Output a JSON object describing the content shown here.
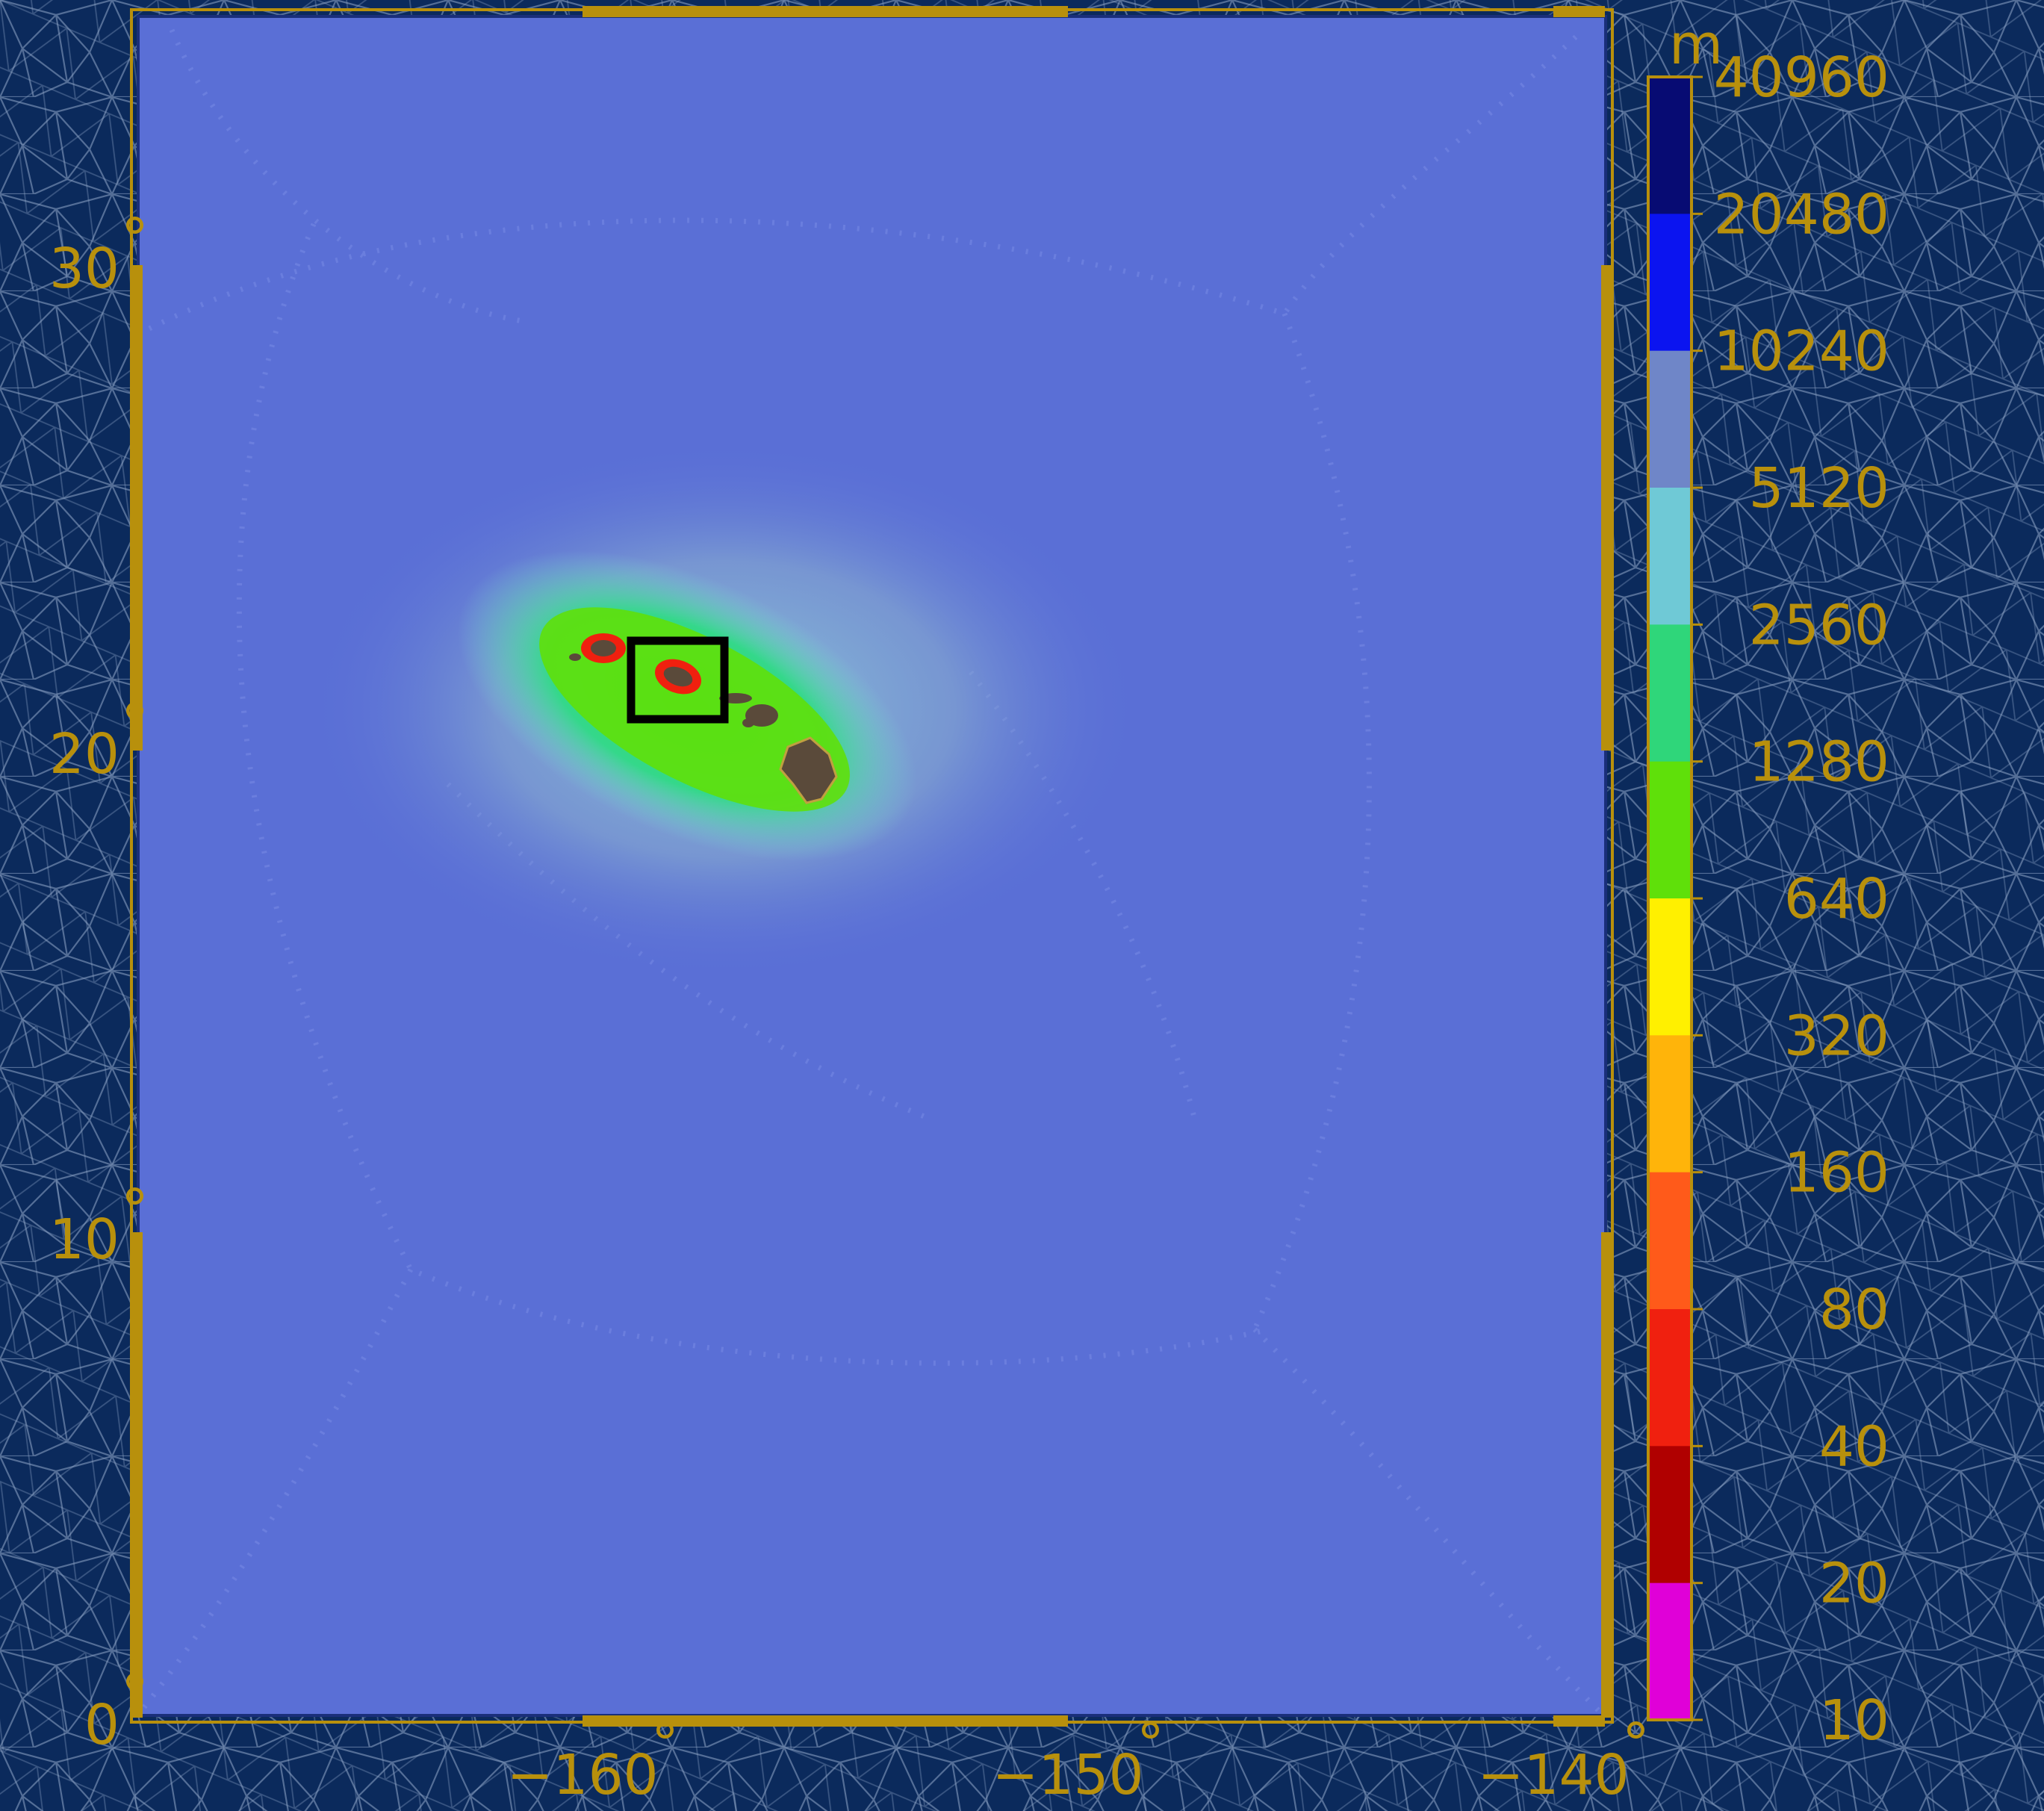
{
  "map": {
    "type": "bathymetry mesh resolution map",
    "region": "Hawaiian Islands, central Pacific",
    "colors": {
      "background_ocean": "#0b2a5c",
      "mesh_lines": "#8fa6c8",
      "domain_fill": "#5a6fd6",
      "frame": "#b8900c",
      "axis_text": "#b8900c",
      "highlight_box": "#000000"
    },
    "lat_ticks": [
      {
        "value": 30,
        "label": "30",
        "deg": "°"
      },
      {
        "value": 20,
        "label": "20",
        "deg": "°"
      },
      {
        "value": 10,
        "label": "10",
        "deg": "°"
      },
      {
        "value": 0,
        "label": "0",
        "deg": "°"
      }
    ],
    "lon_ticks": [
      {
        "value": -160,
        "label": "−160",
        "deg": "°"
      },
      {
        "value": -150,
        "label": "−150",
        "deg": "°"
      },
      {
        "value": -140,
        "label": "−140",
        "deg": "°"
      }
    ],
    "lon_range": [
      -162,
      -139
    ],
    "lat_range": [
      0,
      35
    ],
    "highlight_box_icon": "black rectangle around Oahu"
  },
  "colorbar": {
    "unit": "m",
    "levels": [
      "40960",
      "20480",
      "10240",
      "5120",
      "2560",
      "1280",
      "640",
      "320",
      "160",
      "80",
      "40",
      "20",
      "10"
    ],
    "segment_colors": [
      "#070b73",
      "#0b14f0",
      "#6f86c8",
      "#6fc9d6",
      "#2fd67a",
      "#5fe00a",
      "#fff000",
      "#ffb40a",
      "#ff5a1a",
      "#f0200f",
      "#b00000",
      "#e000d8"
    ]
  }
}
